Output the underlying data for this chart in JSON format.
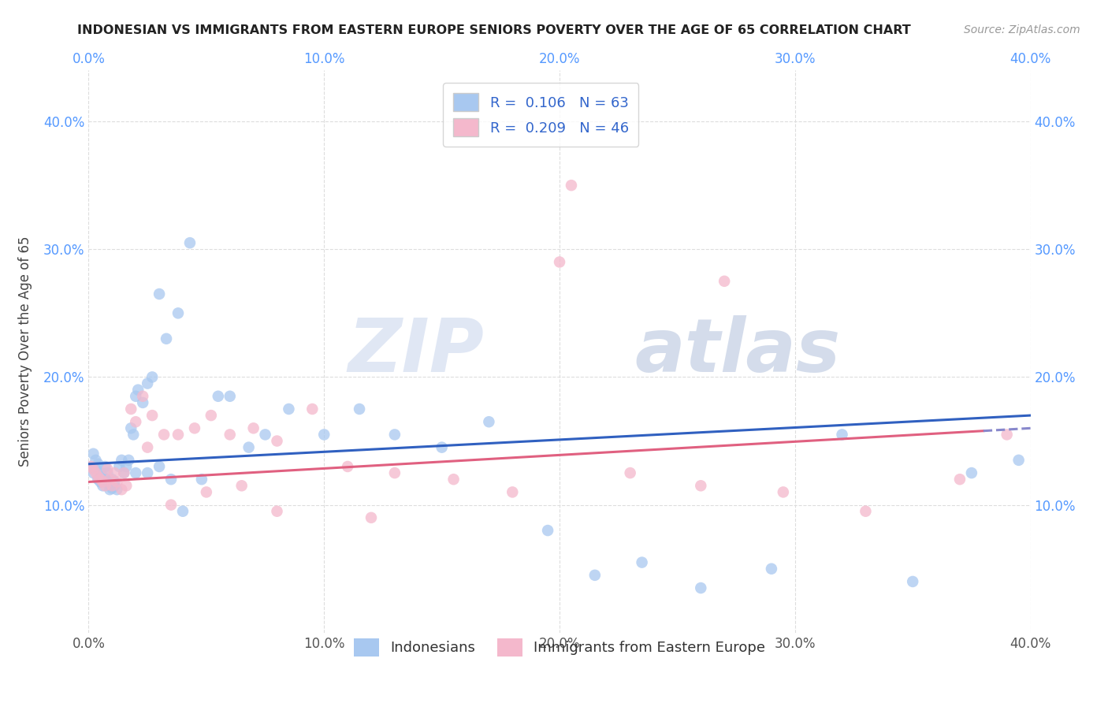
{
  "title": "INDONESIAN VS IMMIGRANTS FROM EASTERN EUROPE SENIORS POVERTY OVER THE AGE OF 65 CORRELATION CHART",
  "source": "Source: ZipAtlas.com",
  "ylabel": "Seniors Poverty Over the Age of 65",
  "xlim": [
    0.0,
    0.4
  ],
  "ylim": [
    0.0,
    0.44
  ],
  "xticks": [
    0.0,
    0.1,
    0.2,
    0.3,
    0.4
  ],
  "yticks": [
    0.1,
    0.2,
    0.3,
    0.4
  ],
  "xtick_labels": [
    "0.0%",
    "10.0%",
    "20.0%",
    "30.0%",
    "40.0%"
  ],
  "ytick_labels": [
    "10.0%",
    "20.0%",
    "30.0%",
    "40.0%"
  ],
  "bottom_legend": [
    "Indonesians",
    "Immigrants from Eastern Europe"
  ],
  "blue_R": 0.106,
  "blue_N": 63,
  "pink_R": 0.209,
  "pink_N": 46,
  "blue_color": "#a8c8f0",
  "pink_color": "#f4b8cc",
  "blue_line_color": "#3060c0",
  "pink_line_color": "#e06080",
  "dash_line_color": "#8888cc",
  "watermark_zip": "ZIP",
  "watermark_atlas": "atlas",
  "indonesian_x": [
    0.001,
    0.002,
    0.002,
    0.003,
    0.003,
    0.004,
    0.004,
    0.005,
    0.005,
    0.006,
    0.006,
    0.007,
    0.007,
    0.008,
    0.008,
    0.009,
    0.009,
    0.01,
    0.01,
    0.011,
    0.011,
    0.012,
    0.013,
    0.014,
    0.015,
    0.016,
    0.017,
    0.018,
    0.019,
    0.02,
    0.021,
    0.023,
    0.025,
    0.027,
    0.03,
    0.033,
    0.038,
    0.043,
    0.048,
    0.055,
    0.06,
    0.068,
    0.075,
    0.085,
    0.1,
    0.115,
    0.13,
    0.15,
    0.17,
    0.195,
    0.215,
    0.235,
    0.26,
    0.29,
    0.32,
    0.35,
    0.375,
    0.395,
    0.02,
    0.025,
    0.03,
    0.035,
    0.04
  ],
  "indonesian_y": [
    0.13,
    0.14,
    0.125,
    0.135,
    0.128,
    0.132,
    0.12,
    0.125,
    0.118,
    0.122,
    0.115,
    0.13,
    0.12,
    0.125,
    0.118,
    0.115,
    0.112,
    0.12,
    0.113,
    0.118,
    0.115,
    0.112,
    0.13,
    0.135,
    0.125,
    0.13,
    0.135,
    0.16,
    0.155,
    0.185,
    0.19,
    0.18,
    0.195,
    0.2,
    0.265,
    0.23,
    0.25,
    0.305,
    0.12,
    0.185,
    0.185,
    0.145,
    0.155,
    0.175,
    0.155,
    0.175,
    0.155,
    0.145,
    0.165,
    0.08,
    0.045,
    0.055,
    0.035,
    0.05,
    0.155,
    0.04,
    0.125,
    0.135,
    0.125,
    0.125,
    0.13,
    0.12,
    0.095
  ],
  "eastern_europe_x": [
    0.001,
    0.002,
    0.003,
    0.004,
    0.005,
    0.006,
    0.007,
    0.008,
    0.009,
    0.01,
    0.011,
    0.012,
    0.014,
    0.016,
    0.018,
    0.02,
    0.023,
    0.027,
    0.032,
    0.038,
    0.045,
    0.052,
    0.06,
    0.07,
    0.08,
    0.095,
    0.11,
    0.13,
    0.155,
    0.18,
    0.205,
    0.23,
    0.26,
    0.295,
    0.33,
    0.37,
    0.015,
    0.025,
    0.035,
    0.05,
    0.065,
    0.08,
    0.12,
    0.2,
    0.27,
    0.39
  ],
  "eastern_europe_y": [
    0.13,
    0.128,
    0.125,
    0.122,
    0.12,
    0.118,
    0.115,
    0.128,
    0.12,
    0.115,
    0.125,
    0.118,
    0.112,
    0.115,
    0.175,
    0.165,
    0.185,
    0.17,
    0.155,
    0.155,
    0.16,
    0.17,
    0.155,
    0.16,
    0.15,
    0.175,
    0.13,
    0.125,
    0.12,
    0.11,
    0.35,
    0.125,
    0.115,
    0.11,
    0.095,
    0.12,
    0.125,
    0.145,
    0.1,
    0.11,
    0.115,
    0.095,
    0.09,
    0.29,
    0.275,
    0.155
  ]
}
